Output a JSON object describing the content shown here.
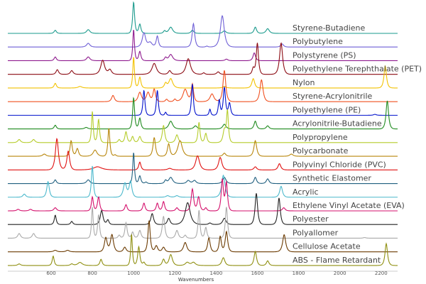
{
  "chart_data": {
    "type": "line",
    "xlabel": "Wavenumbers",
    "ylabel": "",
    "xlim": [
      390,
      2280
    ],
    "xticks": [
      600,
      800,
      1000,
      1200,
      1400,
      1600,
      1800,
      2000,
      2200
    ],
    "grid": false,
    "legend": "labels-right-of-each-trace",
    "note_values": "peaks given as [wavenumber, relative intensity 0-1, width]",
    "series": [
      {
        "name": "Styrene-Butadiene",
        "color": "#1a9a8c",
        "peaks": [
          [
            620,
            0.1,
            8
          ],
          [
            780,
            0.12,
            12
          ],
          [
            1000,
            1.0,
            7
          ],
          [
            1030,
            0.3,
            8
          ],
          [
            1150,
            0.08,
            8
          ],
          [
            1180,
            0.2,
            14
          ],
          [
            1285,
            0.1,
            10
          ],
          [
            1440,
            0.08,
            12
          ],
          [
            1590,
            0.2,
            9
          ],
          [
            1650,
            0.15,
            12
          ]
        ]
      },
      {
        "name": "Polybutylene",
        "color": "#6e5fd6",
        "peaks": [
          [
            780,
            0.12,
            12
          ],
          [
            1050,
            0.45,
            12
          ],
          [
            1080,
            0.15,
            15
          ],
          [
            1115,
            0.35,
            8
          ],
          [
            1290,
            0.75,
            9
          ],
          [
            1355,
            0.03,
            8
          ],
          [
            1430,
            1.0,
            14
          ],
          [
            1720,
            0.1,
            10
          ]
        ]
      },
      {
        "name": "Polystyrene (PS)",
        "color": "#8e1a8e",
        "peaks": [
          [
            620,
            0.12,
            8
          ],
          [
            780,
            0.12,
            12
          ],
          [
            1000,
            1.0,
            6
          ],
          [
            1030,
            0.3,
            8
          ],
          [
            1155,
            0.1,
            8
          ],
          [
            1180,
            0.2,
            14
          ],
          [
            1450,
            0.05,
            10
          ],
          [
            1585,
            0.25,
            9
          ]
        ]
      },
      {
        "name": "Polyethylene Terephthalate (PET)",
        "color": "#8b0a12",
        "peaks": [
          [
            630,
            0.15,
            9
          ],
          [
            700,
            0.12,
            10
          ],
          [
            850,
            0.45,
            14
          ],
          [
            885,
            0.15,
            12
          ],
          [
            1100,
            0.35,
            16
          ],
          [
            1175,
            0.12,
            10
          ],
          [
            1265,
            0.5,
            16
          ],
          [
            1340,
            0.05,
            8
          ],
          [
            1410,
            0.08,
            10
          ],
          [
            1580,
            0.2,
            8
          ],
          [
            1600,
            1.0,
            8
          ],
          [
            1715,
            1.0,
            11
          ]
        ]
      },
      {
        "name": "Nylon",
        "color": "#f2c200",
        "peaks": [
          [
            620,
            0.15,
            8
          ],
          [
            740,
            0.05,
            14
          ],
          [
            1000,
            1.0,
            6
          ],
          [
            1030,
            0.35,
            8
          ],
          [
            1155,
            0.15,
            9
          ],
          [
            1180,
            0.3,
            14
          ],
          [
            1440,
            0.05,
            12
          ],
          [
            1580,
            0.3,
            10
          ],
          [
            2220,
            0.7,
            9
          ]
        ]
      },
      {
        "name": "Styrene-Acrylonitrile",
        "color": "#f05020",
        "peaks": [
          [
            900,
            0.2,
            10
          ],
          [
            1030,
            0.3,
            12
          ],
          [
            1070,
            0.3,
            12
          ],
          [
            1100,
            0.4,
            9
          ],
          [
            1160,
            0.08,
            8
          ],
          [
            1200,
            0.08,
            8
          ],
          [
            1250,
            0.4,
            16
          ],
          [
            1285,
            0.55,
            8
          ],
          [
            1380,
            0.25,
            14
          ],
          [
            1440,
            1.0,
            10
          ],
          [
            1620,
            0.7,
            11
          ]
        ]
      },
      {
        "name": "Polyethylene (PE)",
        "color": "#0010cc",
        "peaks": [
          [
            1050,
            0.8,
            7
          ],
          [
            1115,
            0.8,
            7
          ],
          [
            1155,
            0.1,
            6
          ],
          [
            1285,
            1.0,
            7
          ],
          [
            1370,
            0.2,
            6
          ],
          [
            1415,
            0.5,
            7
          ],
          [
            1440,
            0.9,
            8
          ],
          [
            1465,
            0.4,
            8
          ],
          [
            2170,
            0.03,
            10
          ]
        ]
      },
      {
        "name": "Acrylonitrile-Butadiene",
        "color": "#1e8a1e",
        "peaks": [
          [
            620,
            0.12,
            8
          ],
          [
            770,
            0.05,
            12
          ],
          [
            1000,
            1.0,
            7
          ],
          [
            1030,
            0.35,
            8
          ],
          [
            1180,
            0.25,
            14
          ],
          [
            1300,
            0.1,
            12
          ],
          [
            1440,
            0.15,
            12
          ],
          [
            1590,
            0.25,
            9
          ],
          [
            1650,
            0.1,
            10
          ],
          [
            2230,
            0.9,
            9
          ]
        ]
      },
      {
        "name": "Polypropylene",
        "color": "#b5cc2a",
        "peaks": [
          [
            445,
            0.1,
            10
          ],
          [
            515,
            0.1,
            10
          ],
          [
            800,
            1.0,
            6
          ],
          [
            830,
            0.75,
            7
          ],
          [
            930,
            0.1,
            8
          ],
          [
            963,
            0.35,
            8
          ],
          [
            995,
            0.2,
            8
          ],
          [
            1030,
            0.2,
            9
          ],
          [
            1145,
            0.55,
            9
          ],
          [
            1210,
            0.25,
            10
          ],
          [
            1317,
            0.65,
            7
          ],
          [
            1350,
            0.3,
            8
          ],
          [
            1440,
            0.4,
            10
          ],
          [
            1455,
            1.0,
            7
          ]
        ]
      },
      {
        "name": "Polycarbonate",
        "color": "#b8860b",
        "peaks": [
          [
            567,
            0.07,
            12
          ],
          [
            697,
            0.5,
            8
          ],
          [
            727,
            0.25,
            9
          ],
          [
            813,
            0.2,
            14
          ],
          [
            880,
            0.9,
            7
          ],
          [
            910,
            0.05,
            8
          ],
          [
            1100,
            0.6,
            9
          ],
          [
            1170,
            0.4,
            9
          ],
          [
            1225,
            0.5,
            16
          ],
          [
            1440,
            0.1,
            10
          ],
          [
            1590,
            0.5,
            10
          ],
          [
            1765,
            0.07,
            12
          ]
        ]
      },
      {
        "name": "Polyvinyl Chloride (PVC)",
        "color": "#e01010",
        "peaks": [
          [
            628,
            1.0,
            11
          ],
          [
            683,
            0.6,
            10
          ],
          [
            825,
            0.1,
            30
          ],
          [
            1030,
            0.25,
            8
          ],
          [
            1175,
            0.05,
            15
          ],
          [
            1310,
            0.45,
            14
          ],
          [
            1420,
            0.4,
            12
          ],
          [
            1590,
            0.1,
            10
          ],
          [
            1707,
            0.2,
            10
          ]
        ]
      },
      {
        "name": "Synthetic Elastomer",
        "color": "#1f5f7f",
        "peaks": [
          [
            620,
            0.12,
            8
          ],
          [
            780,
            0.12,
            12
          ],
          [
            1000,
            1.0,
            6
          ],
          [
            1030,
            0.25,
            8
          ],
          [
            1060,
            0.05,
            8
          ],
          [
            1155,
            0.1,
            8
          ],
          [
            1180,
            0.2,
            14
          ],
          [
            1265,
            0.1,
            12
          ],
          [
            1295,
            0.1,
            12
          ],
          [
            1440,
            0.2,
            12
          ],
          [
            1590,
            0.2,
            9
          ],
          [
            1650,
            0.15,
            10
          ]
        ]
      },
      {
        "name": "Acrylic",
        "color": "#4ab8cc",
        "peaks": [
          [
            470,
            0.1,
            10
          ],
          [
            585,
            0.5,
            9
          ],
          [
            800,
            1.0,
            7
          ],
          [
            958,
            0.45,
            12
          ],
          [
            985,
            0.5,
            10
          ],
          [
            1165,
            0.05,
            12
          ],
          [
            1210,
            0.05,
            12
          ],
          [
            1435,
            0.7,
            12
          ],
          [
            1715,
            0.35,
            10
          ]
        ]
      },
      {
        "name": "Ethylene Vinyl Acetate (EVA)",
        "color": "#d4106c",
        "peaks": [
          [
            440,
            0.05,
            10
          ],
          [
            500,
            0.05,
            10
          ],
          [
            620,
            0.1,
            10
          ],
          [
            800,
            0.45,
            7
          ],
          [
            830,
            0.45,
            8
          ],
          [
            963,
            0.2,
            8
          ],
          [
            1050,
            0.25,
            8
          ],
          [
            1115,
            0.25,
            8
          ],
          [
            1145,
            0.3,
            8
          ],
          [
            1210,
            0.1,
            9
          ],
          [
            1285,
            0.7,
            9
          ],
          [
            1315,
            0.45,
            9
          ],
          [
            1350,
            0.1,
            8
          ],
          [
            1430,
            1.0,
            8
          ],
          [
            1450,
            0.9,
            8
          ],
          [
            1728,
            0.1,
            10
          ]
        ]
      },
      {
        "name": "Polyester",
        "color": "#222222",
        "peaks": [
          [
            620,
            0.3,
            7
          ],
          [
            700,
            0.1,
            8
          ],
          [
            845,
            0.45,
            10
          ],
          [
            875,
            0.15,
            8
          ],
          [
            1090,
            0.35,
            10
          ],
          [
            1170,
            0.2,
            10
          ],
          [
            1262,
            0.7,
            18
          ],
          [
            1370,
            0.05,
            10
          ],
          [
            1440,
            0.2,
            12
          ],
          [
            1595,
            1.0,
            9
          ],
          [
            1705,
            0.85,
            9
          ]
        ]
      },
      {
        "name": "Polyallomer",
        "color": "#aaaaaa",
        "peaks": [
          [
            445,
            0.15,
            10
          ],
          [
            515,
            0.15,
            10
          ],
          [
            800,
            1.0,
            6
          ],
          [
            830,
            0.75,
            7
          ],
          [
            930,
            0.1,
            8
          ],
          [
            963,
            0.5,
            8
          ],
          [
            995,
            0.2,
            8
          ],
          [
            1030,
            0.25,
            9
          ],
          [
            1145,
            0.7,
            9
          ],
          [
            1210,
            0.25,
            10
          ],
          [
            1250,
            0.1,
            8
          ],
          [
            1317,
            0.9,
            7
          ],
          [
            1350,
            0.35,
            8
          ],
          [
            1450,
            1.0,
            8
          ],
          [
            2120,
            0.02,
            10
          ]
        ]
      },
      {
        "name": "Cellulose Acetate",
        "color": "#6b3a00",
        "peaks": [
          [
            620,
            0.05,
            12
          ],
          [
            680,
            0.05,
            12
          ],
          [
            865,
            0.45,
            10
          ],
          [
            895,
            0.55,
            11
          ],
          [
            957,
            0.15,
            10
          ],
          [
            1075,
            1.0,
            8
          ],
          [
            1110,
            0.2,
            10
          ],
          [
            1145,
            0.15,
            10
          ],
          [
            1250,
            0.3,
            12
          ],
          [
            1365,
            0.45,
            9
          ],
          [
            1420,
            0.5,
            8
          ],
          [
            1450,
            0.65,
            9
          ],
          [
            1730,
            0.55,
            11
          ]
        ]
      },
      {
        "name": "ABS - Flame Retardant",
        "color": "#8f8f10",
        "peaks": [
          [
            445,
            0.05,
            10
          ],
          [
            610,
            0.3,
            7
          ],
          [
            700,
            0.05,
            10
          ],
          [
            740,
            0.1,
            16
          ],
          [
            842,
            0.2,
            8
          ],
          [
            990,
            1.0,
            6
          ],
          [
            1025,
            0.6,
            8
          ],
          [
            1050,
            0.1,
            8
          ],
          [
            1145,
            0.2,
            9
          ],
          [
            1180,
            0.35,
            12
          ],
          [
            1260,
            0.1,
            14
          ],
          [
            1290,
            0.1,
            14
          ],
          [
            1435,
            0.25,
            11
          ],
          [
            1590,
            0.45,
            9
          ],
          [
            1650,
            0.15,
            9
          ],
          [
            2225,
            0.7,
            9
          ]
        ]
      }
    ]
  }
}
